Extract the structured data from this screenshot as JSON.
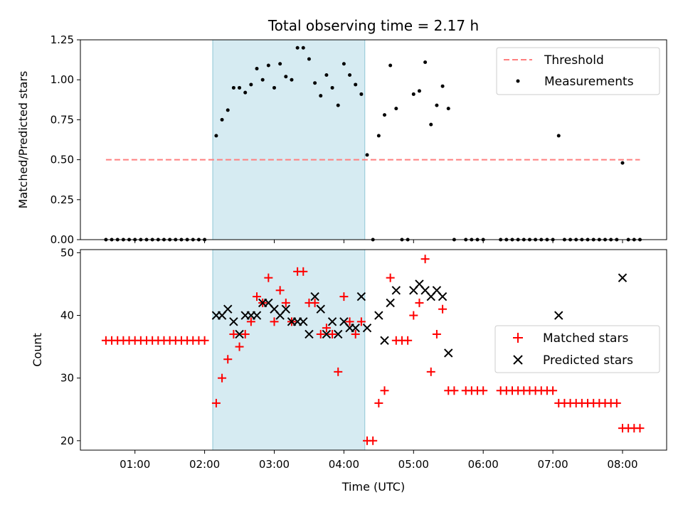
{
  "title": "Total observing time = 2.17 h",
  "chart_data": [
    {
      "type": "scatter",
      "ylabel": "Matched/Predicted stars",
      "xlim": [
        "00:13",
        "08:38"
      ],
      "ylim": [
        0,
        1.25
      ],
      "yticks": [
        "0.00",
        "0.25",
        "0.50",
        "0.75",
        "1.00",
        "1.25"
      ],
      "xticks": [
        "01:00",
        "02:00",
        "03:00",
        "04:00",
        "05:00",
        "06:00",
        "07:00",
        "08:00"
      ],
      "shaded_interval": [
        "02:07",
        "04:18"
      ],
      "legend": [
        "Threshold",
        "Measurements"
      ],
      "legend_position": "top-right",
      "threshold": {
        "name": "Threshold",
        "value": 0.5,
        "x": [
          "00:35",
          "08:15"
        ],
        "color": "#ff7f7f"
      },
      "measurements": {
        "name": "Measurements",
        "color": "#000000",
        "points": [
          [
            "00:35",
            0
          ],
          [
            "00:40",
            0
          ],
          [
            "00:45",
            0
          ],
          [
            "00:50",
            0
          ],
          [
            "00:55",
            0
          ],
          [
            "01:00",
            0
          ],
          [
            "01:05",
            0
          ],
          [
            "01:10",
            0
          ],
          [
            "01:15",
            0
          ],
          [
            "01:20",
            0
          ],
          [
            "01:25",
            0
          ],
          [
            "01:30",
            0
          ],
          [
            "01:35",
            0
          ],
          [
            "01:40",
            0
          ],
          [
            "01:45",
            0
          ],
          [
            "01:50",
            0
          ],
          [
            "01:55",
            0
          ],
          [
            "02:00",
            0
          ],
          [
            "02:10",
            0.65
          ],
          [
            "02:15",
            0.75
          ],
          [
            "02:20",
            0.81
          ],
          [
            "02:25",
            0.95
          ],
          [
            "02:30",
            0.95
          ],
          [
            "02:35",
            0.92
          ],
          [
            "02:40",
            0.97
          ],
          [
            "02:45",
            1.07
          ],
          [
            "02:50",
            1.0
          ],
          [
            "02:55",
            1.09
          ],
          [
            "03:00",
            0.95
          ],
          [
            "03:05",
            1.1
          ],
          [
            "03:10",
            1.02
          ],
          [
            "03:15",
            1.0
          ],
          [
            "03:20",
            1.2
          ],
          [
            "03:25",
            1.2
          ],
          [
            "03:30",
            1.13
          ],
          [
            "03:35",
            0.98
          ],
          [
            "03:40",
            0.9
          ],
          [
            "03:45",
            1.03
          ],
          [
            "03:50",
            0.95
          ],
          [
            "03:55",
            0.84
          ],
          [
            "04:00",
            1.1
          ],
          [
            "04:05",
            1.03
          ],
          [
            "04:10",
            0.97
          ],
          [
            "04:15",
            0.91
          ],
          [
            "04:20",
            0.53
          ],
          [
            "04:25",
            0
          ],
          [
            "04:30",
            0.65
          ],
          [
            "04:35",
            0.78
          ],
          [
            "04:40",
            1.09
          ],
          [
            "04:45",
            0.82
          ],
          [
            "04:50",
            0
          ],
          [
            "04:55",
            0
          ],
          [
            "05:00",
            0.91
          ],
          [
            "05:05",
            0.93
          ],
          [
            "05:10",
            1.11
          ],
          [
            "05:15",
            0.72
          ],
          [
            "05:20",
            0.84
          ],
          [
            "05:25",
            0.96
          ],
          [
            "05:30",
            0.82
          ],
          [
            "05:35",
            0
          ],
          [
            "05:45",
            0
          ],
          [
            "05:50",
            0
          ],
          [
            "05:55",
            0
          ],
          [
            "06:00",
            0
          ],
          [
            "06:15",
            0
          ],
          [
            "06:20",
            0
          ],
          [
            "06:25",
            0
          ],
          [
            "06:30",
            0
          ],
          [
            "06:35",
            0
          ],
          [
            "06:40",
            0
          ],
          [
            "06:45",
            0
          ],
          [
            "06:50",
            0
          ],
          [
            "06:55",
            0
          ],
          [
            "07:00",
            0
          ],
          [
            "07:05",
            0.65
          ],
          [
            "07:10",
            0
          ],
          [
            "07:15",
            0
          ],
          [
            "07:20",
            0
          ],
          [
            "07:25",
            0
          ],
          [
            "07:30",
            0
          ],
          [
            "07:35",
            0
          ],
          [
            "07:40",
            0
          ],
          [
            "07:45",
            0
          ],
          [
            "07:50",
            0
          ],
          [
            "07:55",
            0
          ],
          [
            "08:00",
            0.48
          ],
          [
            "08:05",
            0
          ],
          [
            "08:10",
            0
          ],
          [
            "08:15",
            0
          ]
        ]
      }
    },
    {
      "type": "scatter",
      "xlabel": "Time (UTC)",
      "ylabel": "Count",
      "xlim": [
        "00:13",
        "08:38"
      ],
      "ylim": [
        18.5,
        50.5
      ],
      "yticks": [
        "20",
        "30",
        "40",
        "50"
      ],
      "xticks": [
        "01:00",
        "02:00",
        "03:00",
        "04:00",
        "05:00",
        "06:00",
        "07:00",
        "08:00"
      ],
      "shaded_interval": [
        "02:07",
        "04:18"
      ],
      "legend": [
        "Matched stars",
        "Predicted stars"
      ],
      "legend_position": "center-right",
      "series": [
        {
          "name": "Matched stars",
          "marker": "plus",
          "color": "#ff0000",
          "points": [
            [
              "00:35",
              36
            ],
            [
              "00:40",
              36
            ],
            [
              "00:45",
              36
            ],
            [
              "00:50",
              36
            ],
            [
              "00:55",
              36
            ],
            [
              "01:00",
              36
            ],
            [
              "01:05",
              36
            ],
            [
              "01:10",
              36
            ],
            [
              "01:15",
              36
            ],
            [
              "01:20",
              36
            ],
            [
              "01:25",
              36
            ],
            [
              "01:30",
              36
            ],
            [
              "01:35",
              36
            ],
            [
              "01:40",
              36
            ],
            [
              "01:45",
              36
            ],
            [
              "01:50",
              36
            ],
            [
              "01:55",
              36
            ],
            [
              "02:00",
              36
            ],
            [
              "02:10",
              26
            ],
            [
              "02:15",
              30
            ],
            [
              "02:20",
              33
            ],
            [
              "02:25",
              37
            ],
            [
              "02:30",
              35
            ],
            [
              "02:35",
              37
            ],
            [
              "02:40",
              39
            ],
            [
              "02:45",
              43
            ],
            [
              "02:50",
              42
            ],
            [
              "02:55",
              46
            ],
            [
              "03:00",
              39
            ],
            [
              "03:05",
              44
            ],
            [
              "03:10",
              42
            ],
            [
              "03:15",
              39
            ],
            [
              "03:20",
              47
            ],
            [
              "03:25",
              47
            ],
            [
              "03:30",
              42
            ],
            [
              "03:35",
              42
            ],
            [
              "03:40",
              37
            ],
            [
              "03:45",
              38
            ],
            [
              "03:50",
              37
            ],
            [
              "03:55",
              31
            ],
            [
              "04:00",
              43
            ],
            [
              "04:05",
              39
            ],
            [
              "04:10",
              37
            ],
            [
              "04:15",
              39
            ],
            [
              "04:20",
              20
            ],
            [
              "04:25",
              20
            ],
            [
              "04:30",
              26
            ],
            [
              "04:35",
              28
            ],
            [
              "04:40",
              46
            ],
            [
              "04:45",
              36
            ],
            [
              "04:50",
              36
            ],
            [
              "04:55",
              36
            ],
            [
              "05:00",
              40
            ],
            [
              "05:05",
              42
            ],
            [
              "05:10",
              49
            ],
            [
              "05:15",
              31
            ],
            [
              "05:20",
              37
            ],
            [
              "05:25",
              41
            ],
            [
              "05:30",
              28
            ],
            [
              "05:35",
              28
            ],
            [
              "05:45",
              28
            ],
            [
              "05:50",
              28
            ],
            [
              "05:55",
              28
            ],
            [
              "06:00",
              28
            ],
            [
              "06:15",
              28
            ],
            [
              "06:20",
              28
            ],
            [
              "06:25",
              28
            ],
            [
              "06:30",
              28
            ],
            [
              "06:35",
              28
            ],
            [
              "06:40",
              28
            ],
            [
              "06:45",
              28
            ],
            [
              "06:50",
              28
            ],
            [
              "06:55",
              28
            ],
            [
              "07:00",
              28
            ],
            [
              "07:05",
              26
            ],
            [
              "07:10",
              26
            ],
            [
              "07:15",
              26
            ],
            [
              "07:20",
              26
            ],
            [
              "07:25",
              26
            ],
            [
              "07:30",
              26
            ],
            [
              "07:35",
              26
            ],
            [
              "07:40",
              26
            ],
            [
              "07:45",
              26
            ],
            [
              "07:50",
              26
            ],
            [
              "07:55",
              26
            ],
            [
              "08:00",
              22
            ],
            [
              "08:05",
              22
            ],
            [
              "08:10",
              22
            ],
            [
              "08:15",
              22
            ]
          ]
        },
        {
          "name": "Predicted stars",
          "marker": "x",
          "color": "#000000",
          "points": [
            [
              "02:10",
              40
            ],
            [
              "02:15",
              40
            ],
            [
              "02:20",
              41
            ],
            [
              "02:25",
              39
            ],
            [
              "02:30",
              37
            ],
            [
              "02:35",
              40
            ],
            [
              "02:40",
              40
            ],
            [
              "02:45",
              40
            ],
            [
              "02:50",
              42
            ],
            [
              "02:55",
              42
            ],
            [
              "03:00",
              41
            ],
            [
              "03:05",
              40
            ],
            [
              "03:10",
              41
            ],
            [
              "03:15",
              39
            ],
            [
              "03:20",
              39
            ],
            [
              "03:25",
              39
            ],
            [
              "03:30",
              37
            ],
            [
              "03:35",
              43
            ],
            [
              "03:40",
              41
            ],
            [
              "03:45",
              37
            ],
            [
              "03:50",
              39
            ],
            [
              "03:55",
              37
            ],
            [
              "04:00",
              39
            ],
            [
              "04:05",
              38
            ],
            [
              "04:10",
              38
            ],
            [
              "04:15",
              43
            ],
            [
              "04:20",
              38
            ],
            [
              "04:30",
              40
            ],
            [
              "04:35",
              36
            ],
            [
              "04:40",
              42
            ],
            [
              "04:45",
              44
            ],
            [
              "05:00",
              44
            ],
            [
              "05:05",
              45
            ],
            [
              "05:10",
              44
            ],
            [
              "05:15",
              43
            ],
            [
              "05:20",
              44
            ],
            [
              "05:25",
              43
            ],
            [
              "05:30",
              34
            ],
            [
              "07:05",
              40
            ],
            [
              "08:00",
              46
            ]
          ]
        }
      ]
    }
  ]
}
